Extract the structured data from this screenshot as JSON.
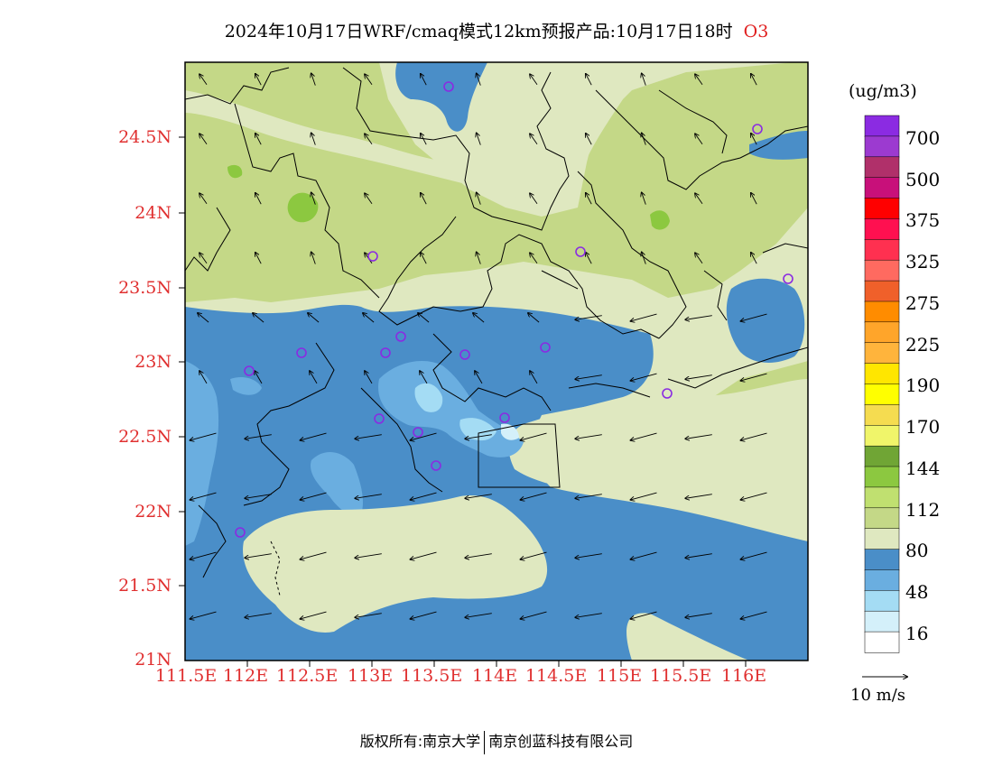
{
  "title": "2024年10月17日WRF/cmaq模式12km预报产品:10月17日18时",
  "species": "O3",
  "unit": "(ug/m3)",
  "lat_ticks": [
    "24.5N",
    "24N",
    "23.5N",
    "23N",
    "22.5N",
    "22N",
    "21.5N",
    "21N"
  ],
  "lon_ticks": [
    "111.5E",
    "112E",
    "112.5E",
    "113E",
    "113.5E",
    "114E",
    "114.5E",
    "115E",
    "115.5E",
    "116E"
  ],
  "legend": {
    "labels": [
      "700",
      "500",
      "375",
      "325",
      "275",
      "225",
      "190",
      "170",
      "144",
      "112",
      "80",
      "48",
      "16"
    ],
    "colors": [
      "#8b2be2",
      "#9c3ad0",
      "#b0306a",
      "#c8107a",
      "#ff0000",
      "#ff1050",
      "#ff3050",
      "#ff6a60",
      "#f0602a",
      "#ff8c00",
      "#ffa52a",
      "#ffb43c",
      "#ffe600",
      "#ffff00",
      "#f5dc50",
      "#f0f56a",
      "#70a535",
      "#8cc840",
      "#c0e070",
      "#c4d887",
      "#dfe8c0",
      "#4a8ec8",
      "#6aaee0",
      "#a4dcf4",
      "#d4f0fa",
      "#ffffff"
    ]
  },
  "wind_reference": "10 m/s",
  "footer": {
    "copyright": "版权所有:南京大学",
    "company": "南京创蓝科技有限公司"
  },
  "colors": {
    "tick_text": "#e03030",
    "species_text": "#e02020",
    "site_marker": "#8a2be2"
  }
}
